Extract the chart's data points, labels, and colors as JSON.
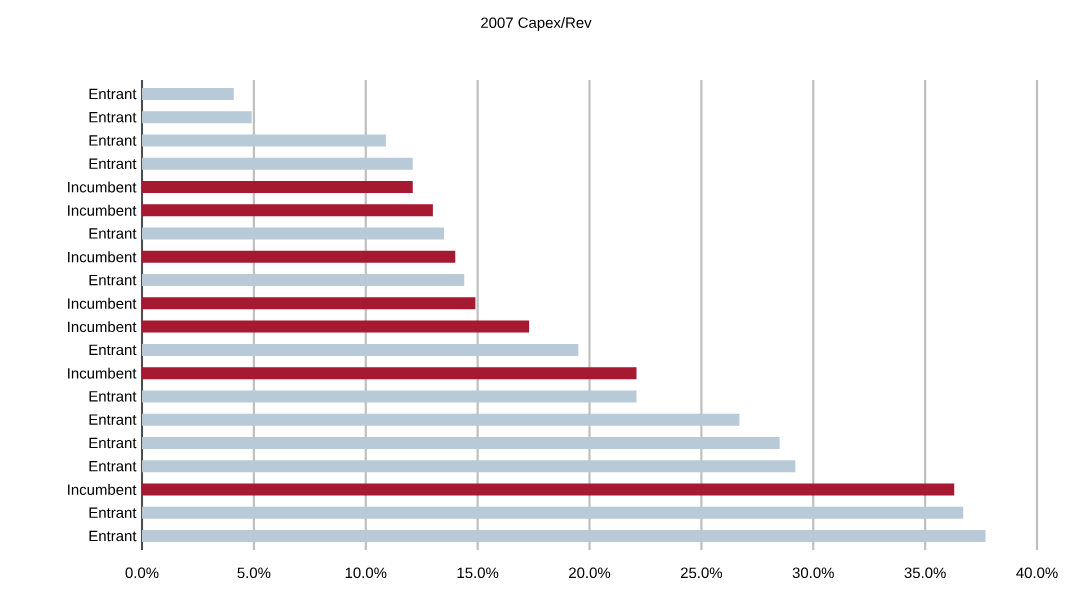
{
  "chart_data": {
    "type": "bar",
    "orientation": "horizontal",
    "title": "2007 Capex/Rev",
    "categories": [
      "Entrant",
      "Entrant",
      "Entrant",
      "Entrant",
      "Incumbent",
      "Incumbent",
      "Entrant",
      "Incumbent",
      "Entrant",
      "Incumbent",
      "Incumbent",
      "Entrant",
      "Incumbent",
      "Entrant",
      "Entrant",
      "Entrant",
      "Entrant",
      "Incumbent",
      "Entrant",
      "Entrant"
    ],
    "values": [
      4.1,
      4.9,
      10.9,
      12.1,
      12.1,
      13.0,
      13.5,
      14.0,
      14.4,
      14.9,
      17.3,
      19.5,
      22.1,
      22.1,
      26.7,
      28.5,
      29.2,
      36.3,
      36.7,
      37.7
    ],
    "colors": [
      "#b8cad8",
      "#b8cad8",
      "#b8cad8",
      "#b8cad8",
      "#a51931",
      "#a51931",
      "#b8cad8",
      "#a51931",
      "#b8cad8",
      "#a51931",
      "#a51931",
      "#b8cad8",
      "#a51931",
      "#b8cad8",
      "#b8cad8",
      "#b8cad8",
      "#b8cad8",
      "#a51931",
      "#b8cad8",
      "#b8cad8"
    ],
    "xlim": [
      0,
      40
    ],
    "xticks": [
      {
        "value": 0,
        "label": "0.0%"
      },
      {
        "value": 5,
        "label": "5.0%"
      },
      {
        "value": 10,
        "label": "10.0%"
      },
      {
        "value": 15,
        "label": "15.0%"
      },
      {
        "value": 20,
        "label": "20.0%"
      },
      {
        "value": 25,
        "label": "25.0%"
      },
      {
        "value": 30,
        "label": "30.0%"
      },
      {
        "value": 35,
        "label": "35.0%"
      },
      {
        "value": 40,
        "label": "40.0%"
      }
    ],
    "grid": "x"
  }
}
